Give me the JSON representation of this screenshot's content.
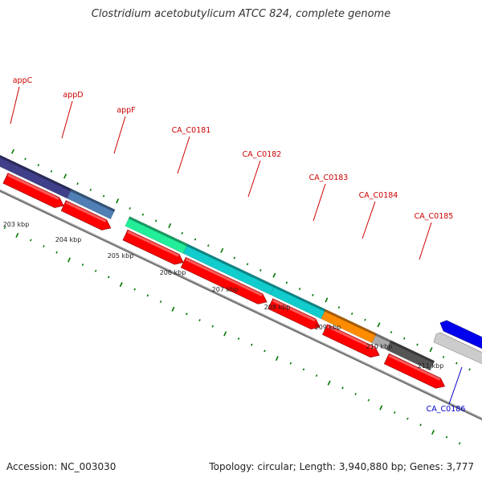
{
  "title": "Clostridium acetobutylicum ATCC 824, complete genome",
  "footer": {
    "accession": "Accession: NC_003030",
    "stats": "Topology: circular; Length: 3,940,880 bp; Genes: 3,777"
  },
  "colors": {
    "forward_cds": "#ff0000",
    "label_forward": "#cc0000",
    "label_reverse": "#0000cc",
    "reverse_cds": "#0000ee",
    "backbone": "#888888",
    "tick": "#007700"
  },
  "kbp_labels": [
    "203 kbp",
    "204 kbp",
    "205 kbp",
    "206 kbp",
    "207 kbp",
    "208 kbp",
    "209 kbp",
    "210 kbp",
    "211 kbp"
  ],
  "gene_labels": [
    {
      "text": "appC",
      "strand": "forward"
    },
    {
      "text": "appD",
      "strand": "forward"
    },
    {
      "text": "appF",
      "strand": "forward"
    },
    {
      "text": "CA_C0181",
      "strand": "forward"
    },
    {
      "text": "CA_C0182",
      "strand": "forward"
    },
    {
      "text": "CA_C0183",
      "strand": "forward"
    },
    {
      "text": "CA_C0184",
      "strand": "forward"
    },
    {
      "text": "CA_C0185",
      "strand": "forward"
    },
    {
      "text": "CA_C0186",
      "strand": "reverse"
    }
  ],
  "category_colors": [
    "#3f3f8a",
    "#4f7fb5",
    "#22ee99",
    "#11cccc",
    "#ff8c00",
    "#aaaaaa",
    "#555555",
    "#cccccc"
  ]
}
